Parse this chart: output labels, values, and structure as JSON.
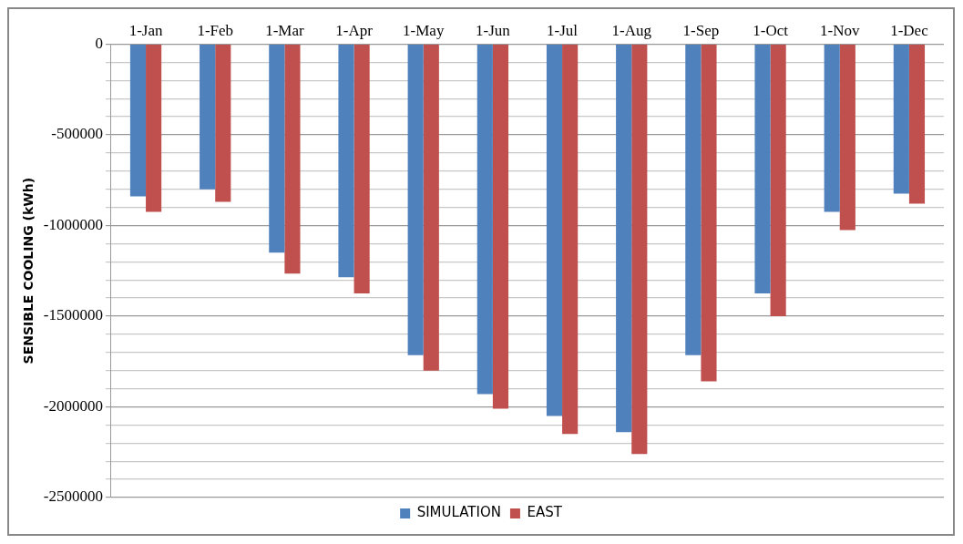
{
  "chart_data": {
    "type": "bar",
    "ylabel": "SENSIBLE COOLING (kWh)",
    "categories": [
      "1-Jan",
      "1-Feb",
      "1-Mar",
      "1-Apr",
      "1-May",
      "1-Jun",
      "1-Jul",
      "1-Aug",
      "1-Sep",
      "1-Oct",
      "1-Nov",
      "1-Dec"
    ],
    "series": [
      {
        "name": "SIMULATION",
        "color": "#4f81bd",
        "values": [
          -840000,
          -800000,
          -1150000,
          -1285000,
          -1715000,
          -1930000,
          -2050000,
          -2140000,
          -1715000,
          -1375000,
          -925000,
          -825000
        ]
      },
      {
        "name": "EAST",
        "color": "#c0504d",
        "values": [
          -925000,
          -870000,
          -1265000,
          -1375000,
          -1800000,
          -2010000,
          -2150000,
          -2260000,
          -1860000,
          -1500000,
          -1025000,
          -880000
        ]
      }
    ],
    "ylim": [
      -2500000,
      0
    ],
    "yticks": [
      -2500000,
      {
        "value": -2400000,
        "label": null
      },
      {
        "value": -2300000,
        "label": null
      },
      {
        "value": -2200000,
        "label": null
      },
      {
        "value": -2100000,
        "label": null
      },
      -2000000,
      {
        "value": -1900000,
        "label": null
      },
      {
        "value": -1800000,
        "label": null
      },
      {
        "value": -1700000,
        "label": null
      },
      {
        "value": -1600000,
        "label": null
      },
      -1500000,
      {
        "value": -1400000,
        "label": null
      },
      {
        "value": -1300000,
        "label": null
      },
      {
        "value": -1200000,
        "label": null
      },
      {
        "value": -1100000,
        "label": null
      },
      -1000000,
      {
        "value": -900000,
        "label": null
      },
      {
        "value": -800000,
        "label": null
      },
      {
        "value": -700000,
        "label": null
      },
      {
        "value": -600000,
        "label": null
      },
      -500000,
      {
        "value": -400000,
        "label": null
      },
      {
        "value": -300000,
        "label": null
      },
      {
        "value": -200000,
        "label": null
      },
      {
        "value": -100000,
        "label": null
      },
      0
    ],
    "grid": "y",
    "legend": "bottom"
  }
}
